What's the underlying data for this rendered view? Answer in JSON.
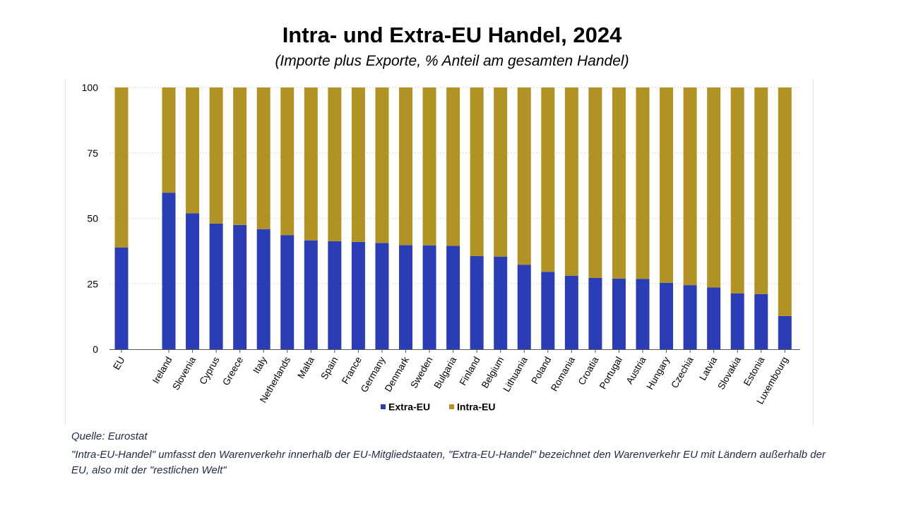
{
  "title": "Intra- und Extra-EU Handel, 2024",
  "subtitle": "(Importe plus Exporte, % Anteil am gesamten Handel)",
  "source": "Quelle: Eurostat",
  "note": "\"Intra-EU-Handel\" umfasst den Warenverkehr innerhalb der EU-Mitgliedstaaten, \"Extra-EU-Handel\" bezeichnet den Warenverkehr EU mit Ländern außerhalb der EU, also mit der \"restlichen Welt\"",
  "chart_data": {
    "type": "bar",
    "stacked": true,
    "categories": [
      "EU",
      "Ireland",
      "Slovenia",
      "Cyprus",
      "Greece",
      "Italy",
      "Netherlands",
      "Malta",
      "Spain",
      "France",
      "Germany",
      "Denmark",
      "Sweden",
      "Bulgaria",
      "Finland",
      "Belgium",
      "Lithuania",
      "Poland",
      "Romania",
      "Croatia",
      "Portugal",
      "Austria",
      "Hungary",
      "Czechia",
      "Latvia",
      "Slovakia",
      "Estonia",
      "Luxembourg"
    ],
    "series": [
      {
        "name": "Extra-EU",
        "color": "#2a3db4",
        "values": [
          38.9,
          59.8,
          51.9,
          48.0,
          47.5,
          45.9,
          43.6,
          41.6,
          41.3,
          41.0,
          40.6,
          39.8,
          39.7,
          39.5,
          35.6,
          35.4,
          32.3,
          29.6,
          28.1,
          27.3,
          27.0,
          26.9,
          25.4,
          24.5,
          23.6,
          21.3,
          21.1,
          12.7
        ]
      },
      {
        "name": "Intra-EU",
        "color": "#b09324",
        "values": [
          61.1,
          40.2,
          48.1,
          52.0,
          52.5,
          54.1,
          56.4,
          58.4,
          58.7,
          59.0,
          59.4,
          60.2,
          60.3,
          60.5,
          64.4,
          64.6,
          67.7,
          70.4,
          71.9,
          72.7,
          73.0,
          73.1,
          74.6,
          75.5,
          76.4,
          78.7,
          78.9,
          87.3
        ]
      }
    ],
    "ylim": [
      0,
      100
    ],
    "yticks": [
      "0",
      "25",
      "50",
      "75",
      "100"
    ],
    "grid": true,
    "legend_position": "bottom-center"
  }
}
